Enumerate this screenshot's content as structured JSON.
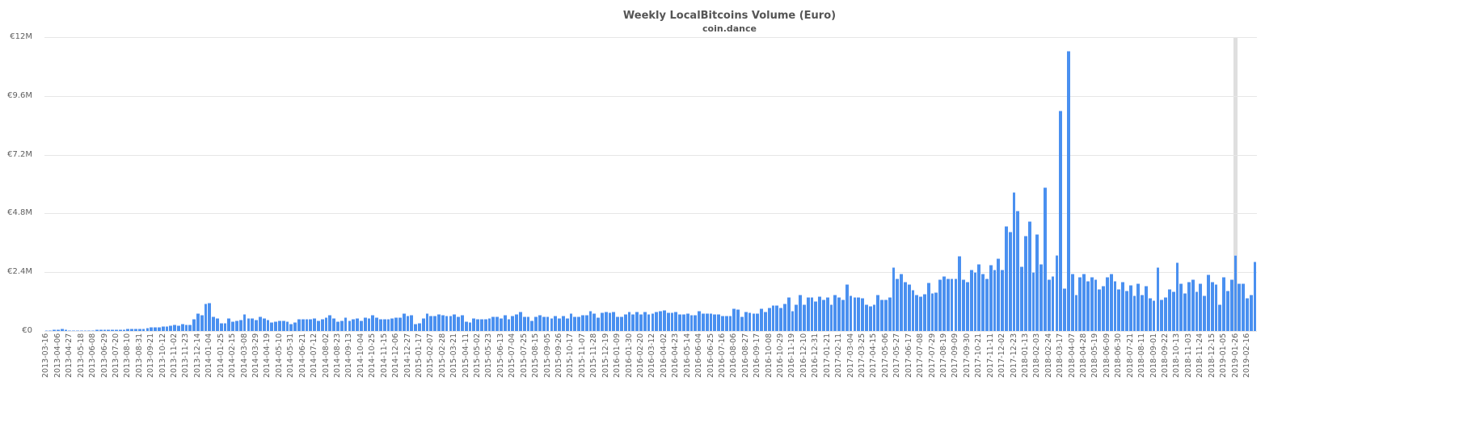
{
  "chart_data": {
    "type": "bar",
    "title": "Weekly LocalBitcoins Volume (Euro)",
    "subtitle": "coin.dance",
    "xlabel": "",
    "ylabel": "",
    "ylim": [
      0,
      12000000
    ],
    "y_ticks": [
      "€0",
      "€2.4M",
      "€4.8M",
      "€7.2M",
      "€9.6M",
      "€12M"
    ],
    "y_tick_values": [
      0,
      2.4,
      4.8,
      7.2,
      9.6,
      12
    ],
    "unit": "EUR (millions)",
    "grid": true,
    "legend": "none",
    "bar_color": "#4a90f0",
    "highlight_week_index": 306,
    "highlight_color": "#d9d9d9",
    "first_week": "2013-03-16",
    "week_step_days": 7,
    "x_tick_every_n_weeks": 3,
    "x_tick_labels": [
      "2013-03-16",
      "2013-04-06",
      "2013-04-27",
      "2013-05-18",
      "2013-06-08",
      "2013-06-29",
      "2013-07-20",
      "2013-08-10",
      "2013-08-31",
      "2013-09-21",
      "2013-10-12",
      "2013-11-02",
      "2013-11-23",
      "2013-12-14",
      "2014-01-04",
      "2014-01-25",
      "2014-02-15",
      "2014-03-08",
      "2014-03-29",
      "2014-04-19",
      "2014-05-10",
      "2014-05-31",
      "2014-06-21",
      "2014-07-12",
      "2014-08-02",
      "2014-08-23",
      "2014-09-13",
      "2014-10-04",
      "2014-10-25",
      "2014-11-15",
      "2014-12-06",
      "2014-12-27",
      "2015-01-17",
      "2015-02-07",
      "2015-02-28",
      "2015-03-21",
      "2015-04-11",
      "2015-05-02",
      "2015-05-23",
      "2015-06-13",
      "2015-07-04",
      "2015-07-25",
      "2015-08-15",
      "2015-09-05",
      "2015-09-26",
      "2015-10-17",
      "2015-11-07",
      "2015-11-28",
      "2015-12-19",
      "2016-01-09",
      "2016-01-30",
      "2016-02-20",
      "2016-03-12",
      "2016-04-02",
      "2016-04-23",
      "2016-05-14",
      "2016-06-04",
      "2016-06-25",
      "2016-07-16",
      "2016-08-06",
      "2016-08-27",
      "2016-09-17",
      "2016-10-08",
      "2016-10-29",
      "2016-11-19",
      "2016-12-10",
      "2016-12-31",
      "2017-01-21",
      "2017-02-11",
      "2017-03-04",
      "2017-03-25",
      "2017-04-15",
      "2017-05-06",
      "2017-05-27",
      "2017-06-17",
      "2017-07-08",
      "2017-07-29",
      "2017-08-19",
      "2017-09-09",
      "2017-09-30",
      "2017-10-21",
      "2017-11-11",
      "2017-12-02",
      "2017-12-23",
      "2018-01-13",
      "2018-02-03",
      "2018-02-24",
      "2018-03-17",
      "2018-04-07",
      "2018-04-28",
      "2018-05-19",
      "2018-06-09",
      "2018-06-30",
      "2018-07-21",
      "2018-08-11",
      "2018-09-01",
      "2018-09-22",
      "2018-10-13",
      "2018-11-03",
      "2018-11-24",
      "2018-12-15",
      "2019-01-05",
      "2019-01-26",
      "2019-02-16"
    ],
    "values_millions": [
      0.02,
      0.03,
      0.05,
      0.08,
      0.1,
      0.05,
      0.04,
      0.03,
      0.04,
      0.03,
      0.04,
      0.04,
      0.04,
      0.05,
      0.06,
      0.05,
      0.06,
      0.07,
      0.08,
      0.07,
      0.08,
      0.09,
      0.09,
      0.1,
      0.09,
      0.1,
      0.14,
      0.16,
      0.17,
      0.16,
      0.19,
      0.2,
      0.22,
      0.27,
      0.24,
      0.31,
      0.27,
      0.25,
      0.5,
      0.72,
      0.66,
      1.12,
      1.14,
      0.59,
      0.54,
      0.33,
      0.33,
      0.54,
      0.39,
      0.44,
      0.46,
      0.68,
      0.52,
      0.52,
      0.47,
      0.6,
      0.54,
      0.47,
      0.37,
      0.38,
      0.44,
      0.42,
      0.38,
      0.31,
      0.36,
      0.48,
      0.48,
      0.48,
      0.51,
      0.52,
      0.44,
      0.49,
      0.55,
      0.65,
      0.53,
      0.39,
      0.44,
      0.55,
      0.43,
      0.49,
      0.53,
      0.44,
      0.55,
      0.53,
      0.65,
      0.57,
      0.5,
      0.48,
      0.5,
      0.53,
      0.57,
      0.56,
      0.72,
      0.64,
      0.67,
      0.3,
      0.33,
      0.53,
      0.72,
      0.63,
      0.63,
      0.68,
      0.66,
      0.62,
      0.62,
      0.69,
      0.6,
      0.67,
      0.41,
      0.37,
      0.52,
      0.48,
      0.48,
      0.48,
      0.54,
      0.61,
      0.59,
      0.53,
      0.65,
      0.51,
      0.64,
      0.68,
      0.78,
      0.58,
      0.61,
      0.42,
      0.58,
      0.65,
      0.61,
      0.6,
      0.52,
      0.64,
      0.54,
      0.62,
      0.52,
      0.71,
      0.59,
      0.59,
      0.66,
      0.65,
      0.84,
      0.74,
      0.56,
      0.77,
      0.8,
      0.77,
      0.8,
      0.59,
      0.6,
      0.68,
      0.79,
      0.7,
      0.8,
      0.7,
      0.8,
      0.68,
      0.74,
      0.78,
      0.82,
      0.86,
      0.76,
      0.76,
      0.78,
      0.7,
      0.7,
      0.74,
      0.66,
      0.66,
      0.84,
      0.74,
      0.74,
      0.74,
      0.68,
      0.68,
      0.64,
      0.62,
      0.64,
      0.92,
      0.88,
      0.6,
      0.8,
      0.76,
      0.74,
      0.74,
      0.92,
      0.8,
      0.96,
      1.07,
      1.04,
      0.97,
      1.13,
      1.38,
      0.82,
      1.1,
      1.48,
      1.1,
      1.38,
      1.4,
      1.23,
      1.42,
      1.28,
      1.4,
      1.08,
      1.5,
      1.4,
      1.28,
      1.9,
      1.45,
      1.38,
      1.4,
      1.35,
      1.1,
      1.03,
      1.08,
      1.5,
      1.3,
      1.3,
      1.4,
      2.6,
      2.15,
      2.35,
      2.0,
      1.92,
      1.69,
      1.49,
      1.41,
      1.51,
      1.98,
      1.56,
      1.58,
      2.1,
      2.25,
      2.13,
      2.15,
      2.15,
      3.08,
      2.12,
      2.0,
      2.5,
      2.41,
      2.75,
      2.35,
      2.15,
      2.7,
      2.5,
      2.98,
      2.5,
      4.3,
      4.05,
      5.66,
      4.9,
      2.65,
      3.9,
      4.5,
      2.4,
      3.95,
      2.75,
      5.88,
      2.1,
      2.25,
      3.1,
      9.0,
      1.75,
      11.45,
      2.35,
      1.5,
      2.2,
      2.35,
      2.05,
      2.22,
      2.1,
      1.7,
      1.85,
      2.2,
      2.35,
      2.05,
      1.7,
      2.0,
      1.65,
      1.88,
      1.45,
      1.95,
      1.5,
      1.85,
      1.35,
      1.25,
      2.62,
      1.3,
      1.4,
      1.7,
      1.6,
      2.8,
      1.95,
      1.55,
      2.0,
      2.1,
      1.6,
      1.95,
      1.45,
      2.3,
      2.0,
      1.9,
      1.1,
      2.2,
      1.65,
      2.1,
      3.1,
      1.95,
      1.95,
      1.35,
      1.5,
      2.85
    ]
  }
}
